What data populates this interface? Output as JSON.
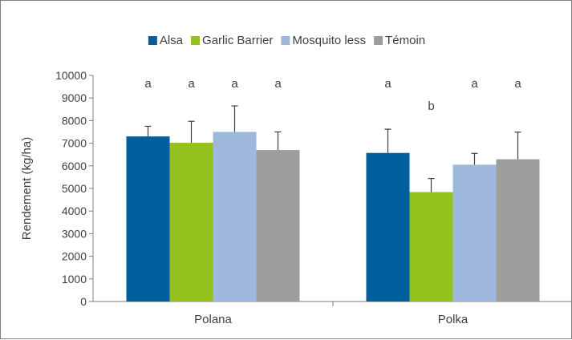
{
  "chart_data": {
    "type": "bar",
    "title": "",
    "xlabel": "",
    "ylabel": "Rendement  (kg/ha)",
    "ylim": [
      0,
      10000
    ],
    "yticks": [
      0,
      1000,
      2000,
      3000,
      4000,
      5000,
      6000,
      7000,
      8000,
      9000,
      10000
    ],
    "categories": [
      "Polana",
      "Polka"
    ],
    "legend_position": "top",
    "grid": false,
    "series": [
      {
        "name": "Alsa",
        "color": "#00609e",
        "values": [
          7300,
          6570
        ],
        "errors": [
          450,
          1050
        ],
        "letters": [
          "a",
          "a"
        ]
      },
      {
        "name": "Garlic Barrier",
        "color": "#95c11f",
        "values": [
          7020,
          4840
        ],
        "errors": [
          950,
          600
        ],
        "letters": [
          "a",
          "b"
        ]
      },
      {
        "name": "Mosquito less",
        "color": "#9fb8dd",
        "values": [
          7500,
          6050
        ],
        "errors": [
          1150,
          500
        ],
        "letters": [
          "a",
          "a"
        ]
      },
      {
        "name": "Témoin",
        "color": "#9d9d9c",
        "values": [
          6700,
          6290
        ],
        "errors": [
          800,
          1200
        ],
        "letters": [
          "a",
          "a"
        ]
      }
    ]
  }
}
